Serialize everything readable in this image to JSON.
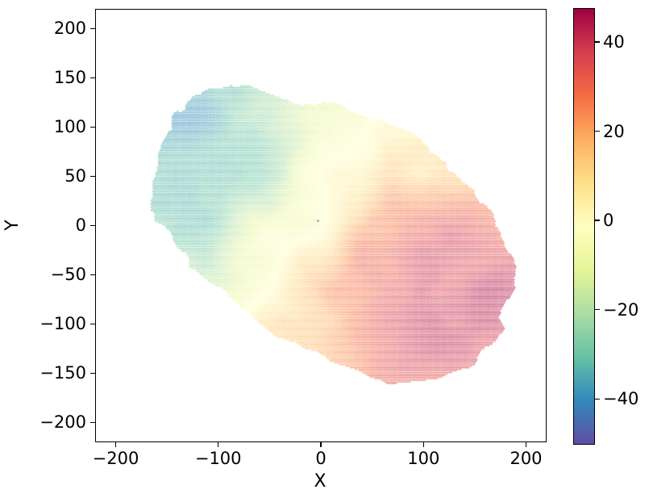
{
  "chart_data": {
    "type": "scatter",
    "title": "",
    "xlabel": "X",
    "ylabel": "Y",
    "xlim": [
      -220,
      220
    ],
    "ylim": [
      -220,
      220
    ],
    "grid": false,
    "legend": "none",
    "x_ticks": [
      -200,
      -100,
      0,
      100,
      200
    ],
    "x_tick_labels": [
      "−200",
      "−100",
      "0",
      "100",
      "200"
    ],
    "y_ticks": [
      200,
      150,
      100,
      50,
      0,
      -50,
      -100,
      -150,
      -200
    ],
    "y_tick_labels": [
      "200",
      "150",
      "100",
      "50",
      "0",
      "−50",
      "−100",
      "−150",
      "−200"
    ],
    "colorbar": {
      "orientation": "vertical",
      "position": "right",
      "vmin": -50.1,
      "vmax": 47.6,
      "ticks": [
        40,
        20,
        0,
        -20,
        -40
      ],
      "tick_labels": [
        "40",
        "20",
        "0",
        "−20",
        "−40"
      ],
      "colormap": "Spectral_r",
      "stops_low_to_high": [
        "#5e4fa2",
        "#3288bd",
        "#66c2a5",
        "#abdda4",
        "#e6f598",
        "#ffffbf",
        "#fee08b",
        "#fdae61",
        "#f46d43",
        "#d53e4f",
        "#9e0142"
      ]
    },
    "pattern": "dense dot lattice of particles forming an irregular tilted ellipse; line-of-sight velocity map of a rotating disk: negative (blue/purple) upper-left, near zero (pale yellow) through center, positive (orange/dark red) lower-right, with clumpy noise patches and fractal island boundary",
    "field_model": {
      "mask_center": [
        8,
        -8
      ],
      "semi_major": 195,
      "semi_minor": 122,
      "major_angle_deg": -31,
      "boundary_noise_amp": 0.21,
      "boundary_noise_scale": 95,
      "boundary_octaves": 5,
      "boundary_persistence": 0.55,
      "mask_seed": 11,
      "kin_center": [
        -10,
        5
      ],
      "v_amplitude": 40,
      "turnover_radius": 75,
      "disk_flattening": 0.63,
      "vel_noise_amp": 12,
      "vel_noise_scale": 60,
      "vel_octaves": 3,
      "vel_persistence": 0.5,
      "vel_seed": 23,
      "dot_jitter_amp": 1.0,
      "jitter_seed": 5
    },
    "marker": {
      "shape": "dot",
      "spacing_x_px": 2.25,
      "spacing_y_px": 1.95,
      "radius_px": 0.8
    },
    "stray_points": [
      {
        "x": -2,
        "y": 4,
        "value": -44
      }
    ]
  }
}
